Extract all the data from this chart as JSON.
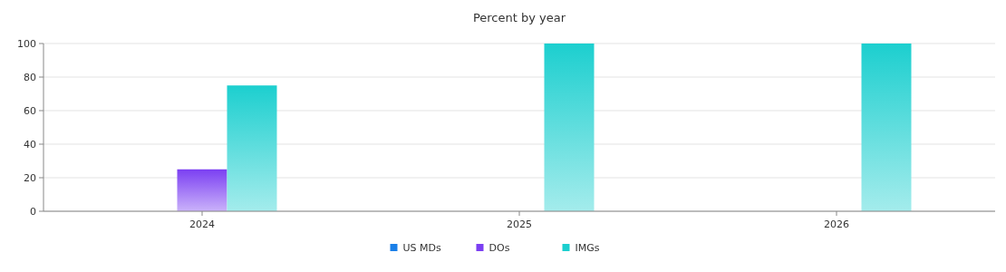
{
  "chart_data": {
    "type": "bar",
    "title": "Percent by year",
    "categories": [
      "2024",
      "2025",
      "2026"
    ],
    "series": [
      {
        "name": "US MDs",
        "color": "#1a7fe8",
        "values": [
          0,
          0,
          0
        ]
      },
      {
        "name": "DOs",
        "color": "#7b3ff2",
        "values": [
          25,
          0,
          0
        ]
      },
      {
        "name": "IMGs",
        "color": "#1ccfcf",
        "values": [
          75,
          100,
          100
        ]
      }
    ],
    "ylim": [
      0,
      100
    ],
    "yticks": [
      0,
      20,
      40,
      60,
      80,
      100
    ],
    "grid": "y",
    "legend": "bottom"
  }
}
